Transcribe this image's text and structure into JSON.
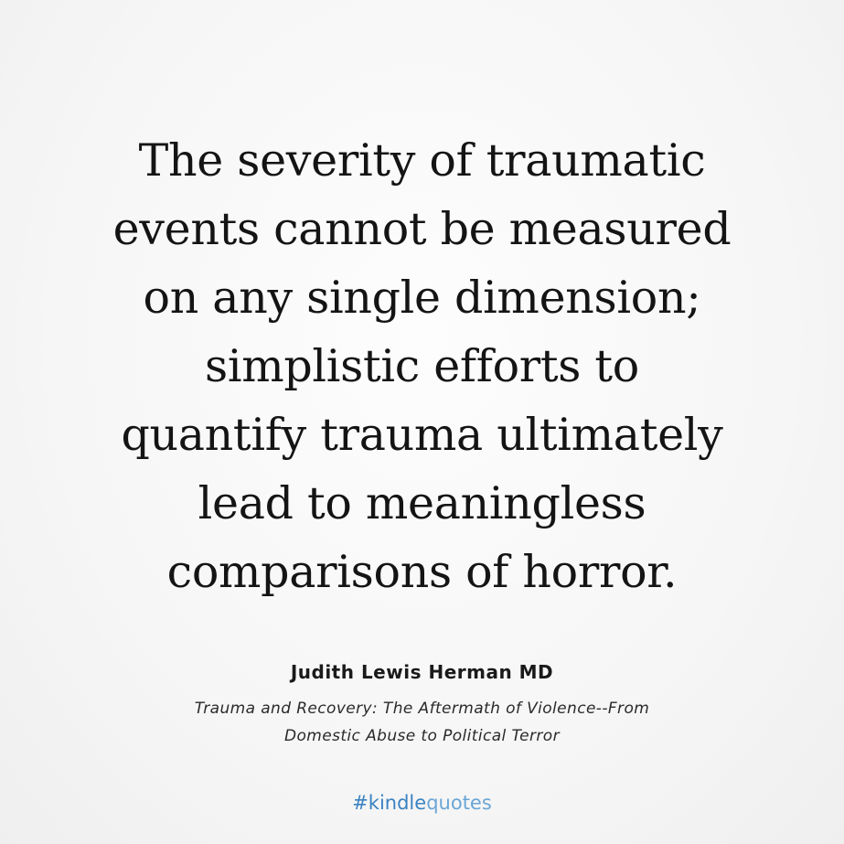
{
  "quote": {
    "lines": [
      "The severity of traumatic",
      "events cannot be measured",
      "on any single dimension;",
      "simplistic efforts to",
      "quantify trauma ultimately",
      "lead to meaningless",
      "comparisons of horror."
    ]
  },
  "attribution": {
    "author": "Judith Lewis Herman MD",
    "book_lines": [
      "Trauma and Recovery: The Aftermath of Violence--From",
      "Domestic Abuse to Political Terror"
    ]
  },
  "footer": {
    "hashtag_prefix": "#kindle",
    "hashtag_suffix": "quotes"
  },
  "colors": {
    "background": "#f5f5f5",
    "text": "#141414",
    "hashtag": "#4a90c8"
  }
}
